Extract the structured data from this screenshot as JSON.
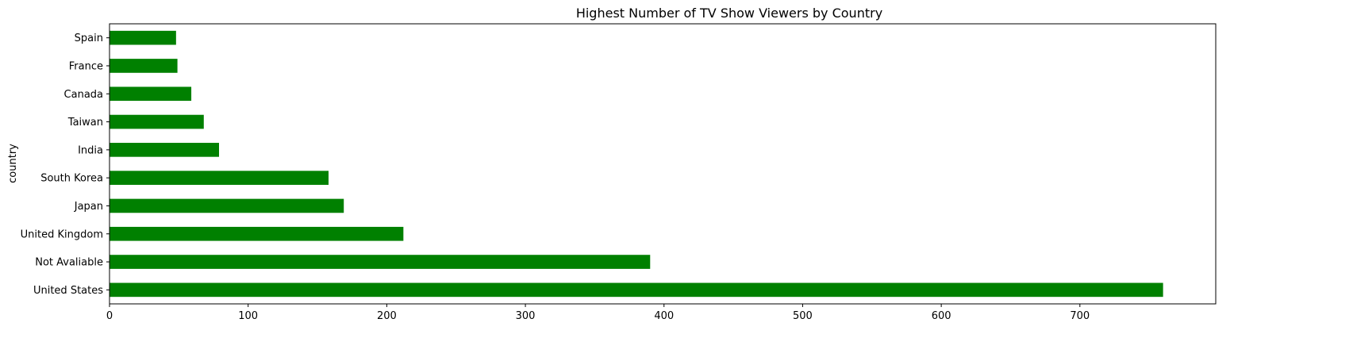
{
  "chart_data": {
    "type": "bar",
    "orientation": "horizontal",
    "title": "Highest Number of TV Show Viewers by Country",
    "xlabel": "",
    "ylabel": "country",
    "categories": [
      "United States",
      "Not Avaliable",
      "United Kingdom",
      "Japan",
      "South Korea",
      "India",
      "Taiwan",
      "Canada",
      "France",
      "Spain"
    ],
    "values": [
      760,
      390,
      212,
      169,
      158,
      79,
      68,
      59,
      49,
      48
    ],
    "xlim": [
      0,
      798
    ],
    "xticks": [
      0,
      100,
      200,
      300,
      400,
      500,
      600,
      700
    ],
    "bar_color": "#008000",
    "grid": false,
    "legend": "none"
  }
}
